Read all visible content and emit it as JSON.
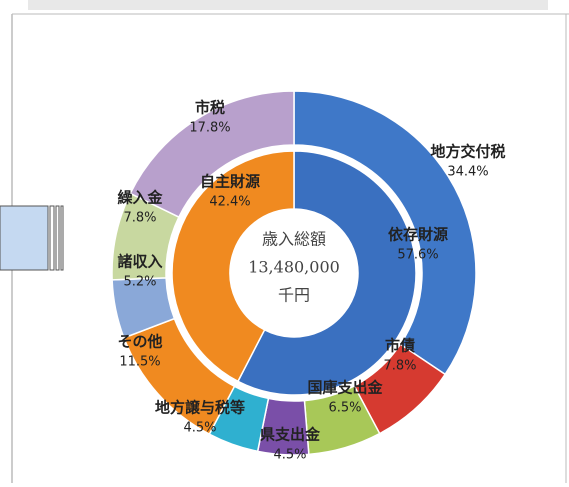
{
  "chart_data": {
    "type": "donut",
    "center_label": {
      "title": "歳入総額",
      "amount": {
        "value": 13480000,
        "label": "13,480,000"
      },
      "unit": "千円"
    },
    "rings": [
      {
        "name": null,
        "categories": [
          "地方交付税",
          "市債",
          "国庫支出金",
          "県支出金",
          "地方譲与税等",
          "その他",
          "諸収入",
          "繰入金",
          "市税"
        ],
        "values": [
          34.4,
          7.8,
          6.5,
          4.5,
          4.5,
          11.5,
          5.2,
          7.8,
          17.8
        ],
        "value_labels": [
          "34.4%",
          "7.8%",
          "6.5%",
          "4.5%",
          "4.5%",
          "11.5%",
          "5.2%",
          "7.8%",
          "17.8%"
        ],
        "colors": [
          "#3f78c8",
          "#d63a30",
          "#a8c858",
          "#7a4fa8",
          "#2fb0d0",
          "#f08a20",
          "#8aa8d8",
          "#c8d8a0",
          "#b8a0cc"
        ]
      },
      {
        "name": null,
        "categories": [
          "依存財源",
          "自主財源"
        ],
        "values": [
          57.6,
          42.4
        ],
        "value_labels": [
          "57.6%",
          "42.4%"
        ],
        "colors": [
          "#3a70c0",
          "#f08a20"
        ]
      }
    ]
  }
}
